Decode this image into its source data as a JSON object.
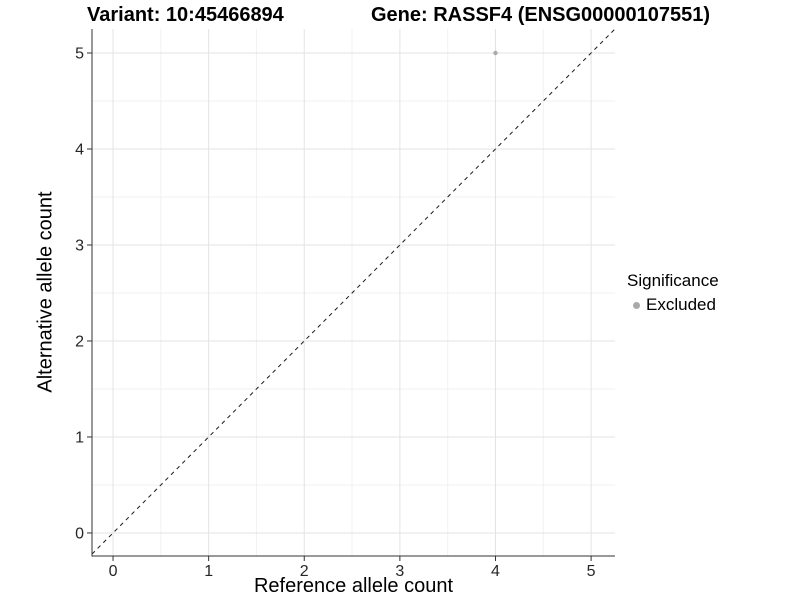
{
  "chart_data": {
    "type": "scatter",
    "titles": [
      "Variant: 10:45466894",
      "Gene: RASSF4 (ENSG00000107551)"
    ],
    "xlabel": "Reference allele count",
    "ylabel": "Alternative allele count",
    "xlim": [
      -0.22,
      5.25
    ],
    "ylim": [
      -0.24,
      5.25
    ],
    "x_ticks": [
      0,
      1,
      2,
      3,
      4,
      5
    ],
    "y_ticks": [
      0,
      1,
      2,
      3,
      4,
      5
    ],
    "x_minor": [
      0.5,
      1.5,
      2.5,
      3.5,
      4.5
    ],
    "y_minor": [
      0.5,
      1.5,
      2.5,
      3.5,
      4.5
    ],
    "grid": true,
    "series": [
      {
        "name": "Excluded",
        "color": "#a9a9a9",
        "points": [
          {
            "x": 4,
            "y": 5
          }
        ]
      }
    ],
    "abline": {
      "slope": 1,
      "intercept": 0,
      "style": "dashed",
      "color": "#1a1a1a"
    },
    "legend": {
      "title": "Significance",
      "position": "right",
      "items": [
        {
          "label": "Excluded",
          "color": "#a9a9a9"
        }
      ]
    },
    "colors": {
      "background": "#ffffff",
      "grid_major": "#e3e3e3",
      "grid_minor": "#f1f1f1",
      "axis": "#333333",
      "tick_text": "#262626",
      "title_text": "#000000"
    }
  }
}
